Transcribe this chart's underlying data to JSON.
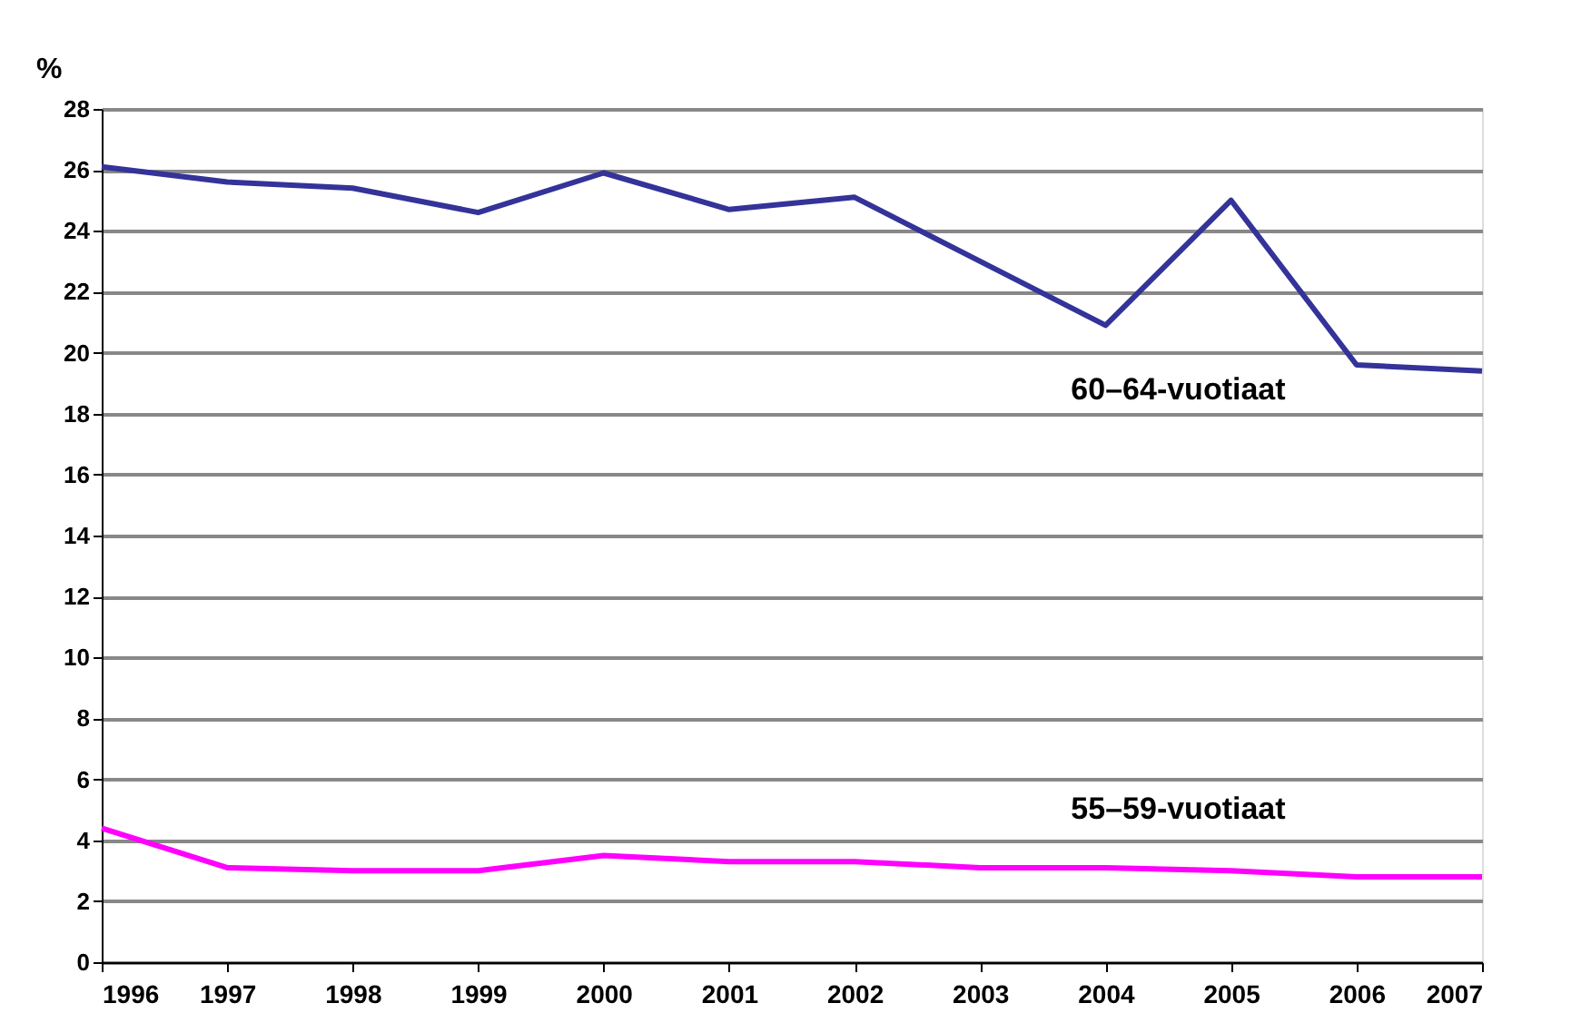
{
  "chart_data": {
    "type": "line",
    "ylabel": "%",
    "x": [
      1996,
      1997,
      1998,
      1999,
      2000,
      2001,
      2002,
      2003,
      2004,
      2005,
      2006,
      2007
    ],
    "series": [
      {
        "name": "60–64-vuotiaat",
        "color": "#333399",
        "values": [
          26.1,
          25.6,
          25.4,
          24.6,
          25.9,
          24.7,
          25.1,
          23.0,
          20.9,
          25.0,
          19.6,
          19.4
        ]
      },
      {
        "name": "55–59-vuotiaat",
        "color": "#ff00ff",
        "values": [
          4.4,
          3.1,
          3.0,
          3.0,
          3.5,
          3.3,
          3.3,
          3.1,
          3.1,
          3.0,
          2.8,
          2.8
        ]
      }
    ],
    "xlim": [
      1996,
      2007
    ],
    "xticks": [
      1996,
      1997,
      1998,
      1999,
      2000,
      2001,
      2002,
      2003,
      2004,
      2005,
      2006,
      2007
    ],
    "ylim": [
      0,
      28
    ],
    "yticks": [
      0,
      2,
      4,
      6,
      8,
      10,
      12,
      14,
      16,
      18,
      20,
      22,
      24,
      26,
      28
    ],
    "grid": "y",
    "legend": false,
    "marker": "none",
    "line_style": "solid"
  }
}
